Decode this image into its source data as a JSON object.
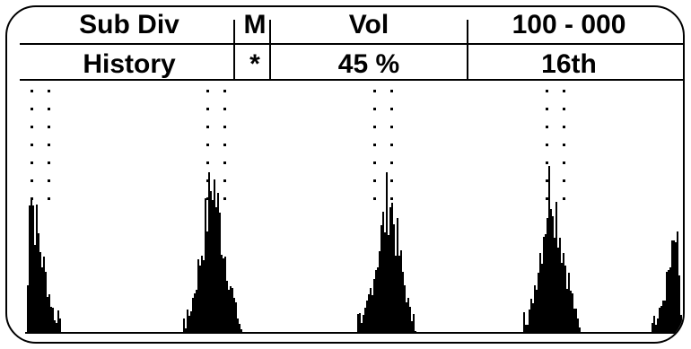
{
  "header": {
    "mode_label": "Sub Div",
    "m_label": "M",
    "vol_label": "Vol",
    "range_label": "100 - 000"
  },
  "values": {
    "mode_value": "History",
    "m_value": "*",
    "vol_value": "45 %",
    "range_value": "16th"
  },
  "colors": {
    "ink": "#000000",
    "background": "#ffffff"
  }
}
